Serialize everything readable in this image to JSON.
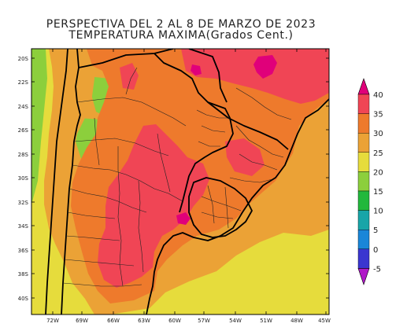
{
  "title_line1": "PERSPECTIVA DEL 2 AL 8  DE MARZO DE 2023",
  "title_line2": "TEMPERATURA MAXIMA(Grados Cent.)",
  "lat_labels": [
    "20S",
    "22S",
    "24S",
    "26S",
    "28S",
    "30S",
    "32S",
    "34S",
    "36S",
    "38S",
    "40S"
  ],
  "lon_labels": [
    "72W",
    "69W",
    "66W",
    "63W",
    "60W",
    "57W",
    "54W",
    "51W",
    "48W",
    "45W"
  ],
  "colorbar": {
    "labels": [
      "40",
      "35",
      "30",
      "25",
      "20",
      "15",
      "10",
      "5",
      "0",
      "-5"
    ],
    "bands": [
      {
        "range": "above 40",
        "color": "#e0007a"
      },
      {
        "range": "35-40",
        "color": "#f04555"
      },
      {
        "range": "30-35",
        "color": "#ee7a2c"
      },
      {
        "range": "25-30",
        "color": "#eba236"
      },
      {
        "range": "20-25",
        "color": "#e6dc3c"
      },
      {
        "range": "15-20",
        "color": "#8ccf3c"
      },
      {
        "range": "10-15",
        "color": "#22b83c"
      },
      {
        "range": "5-10",
        "color": "#18a5a8"
      },
      {
        "range": "0-5",
        "color": "#1a86d8"
      },
      {
        "range": "-5-0",
        "color": "#3a36d0"
      },
      {
        "range": "below -5",
        "color": "#b018c8"
      }
    ]
  }
}
